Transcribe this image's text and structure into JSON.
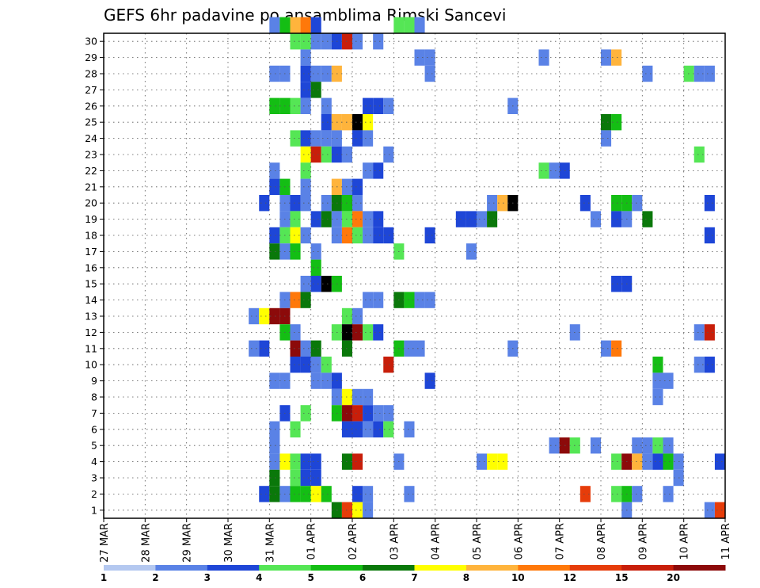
{
  "chart_data": {
    "type": "heatmap",
    "title": "GEFS 6hr padavine po ansamblima Rimski Sancevi",
    "xlabel": "",
    "ylabel": "",
    "y_ticks": [
      "1",
      "2",
      "3",
      "4",
      "5",
      "6",
      "7",
      "8",
      "9",
      "10",
      "11",
      "12",
      "13",
      "14",
      "15",
      "16",
      "17",
      "18",
      "19",
      "20",
      "21",
      "22",
      "23",
      "24",
      "25",
      "26",
      "27",
      "28",
      "29",
      "30"
    ],
    "x_ticks": [
      "27 MAR",
      "28 MAR",
      "29 MAR",
      "30 MAR",
      "31 MAR",
      "01 APR",
      "02 APR",
      "03 APR",
      "04 APR",
      "05 APR",
      "06 APR",
      "07 APR",
      "08 APR",
      "09 APR",
      "10 APR",
      "11 APR"
    ],
    "x_range_steps": [
      0,
      60
    ],
    "x_tick_every_steps": 4,
    "y_range": [
      0,
      30
    ],
    "grid": true,
    "colorbar": {
      "labels": [
        "1",
        "2",
        "3",
        "4",
        "5",
        "6",
        "7",
        "8",
        "10",
        "12",
        "15",
        "20"
      ],
      "colors": [
        "#b4c8f0",
        "#5a82e6",
        "#1e46d7",
        "#55e655",
        "#14be14",
        "#0a780a",
        "#ffff00",
        "#ffb43c",
        "#ff780a",
        "#e63c0a",
        "#c81e0a",
        "#8c0a0a"
      ]
    },
    "cells": [
      [
        16,
        30,
        1
      ],
      [
        17,
        30,
        4
      ],
      [
        18,
        30,
        7
      ],
      [
        19,
        30,
        8
      ],
      [
        20,
        30,
        2
      ],
      [
        28,
        30,
        3
      ],
      [
        29,
        30,
        3
      ],
      [
        30,
        30,
        1
      ],
      [
        18,
        29,
        3
      ],
      [
        19,
        29,
        3
      ],
      [
        20,
        29,
        1
      ],
      [
        21,
        29,
        1
      ],
      [
        22,
        29,
        2
      ],
      [
        23,
        29,
        10
      ],
      [
        24,
        29,
        1
      ],
      [
        26,
        29,
        1
      ],
      [
        19,
        28,
        1
      ],
      [
        30,
        28,
        1
      ],
      [
        31,
        28,
        1
      ],
      [
        42,
        28,
        1
      ],
      [
        48,
        28,
        1
      ],
      [
        49,
        28,
        7
      ],
      [
        16,
        27,
        1
      ],
      [
        17,
        27,
        1
      ],
      [
        19,
        27,
        2
      ],
      [
        20,
        27,
        1
      ],
      [
        21,
        27,
        1
      ],
      [
        22,
        27,
        7
      ],
      [
        31,
        27,
        1
      ],
      [
        52,
        27,
        1
      ],
      [
        56,
        27,
        3
      ],
      [
        57,
        27,
        1
      ],
      [
        58,
        27,
        1
      ],
      [
        19,
        26,
        2
      ],
      [
        20,
        26,
        5
      ],
      [
        16,
        25,
        4
      ],
      [
        17,
        25,
        4
      ],
      [
        18,
        25,
        3
      ],
      [
        19,
        25,
        1
      ],
      [
        21,
        25,
        1
      ],
      [
        25,
        25,
        2
      ],
      [
        26,
        25,
        2
      ],
      [
        27,
        25,
        1
      ],
      [
        39,
        25,
        1
      ],
      [
        21,
        24,
        2
      ],
      [
        22,
        24,
        7
      ],
      [
        23,
        24,
        7
      ],
      [
        24,
        24,
        13
      ],
      [
        25,
        24,
        6
      ],
      [
        48,
        24,
        5
      ],
      [
        49,
        24,
        4
      ],
      [
        18,
        23,
        3
      ],
      [
        19,
        23,
        2
      ],
      [
        20,
        23,
        1
      ],
      [
        21,
        23,
        1
      ],
      [
        22,
        23,
        1
      ],
      [
        24,
        23,
        2
      ],
      [
        25,
        23,
        1
      ],
      [
        48,
        23,
        1
      ],
      [
        19,
        22,
        6
      ],
      [
        20,
        22,
        10
      ],
      [
        21,
        22,
        3
      ],
      [
        22,
        22,
        2
      ],
      [
        23,
        22,
        1
      ],
      [
        27,
        22,
        1
      ],
      [
        57,
        22,
        3
      ],
      [
        16,
        21,
        1
      ],
      [
        19,
        21,
        3
      ],
      [
        25,
        21,
        1
      ],
      [
        26,
        21,
        2
      ],
      [
        42,
        21,
        3
      ],
      [
        43,
        21,
        1
      ],
      [
        44,
        21,
        2
      ],
      [
        16,
        20,
        2
      ],
      [
        17,
        20,
        4
      ],
      [
        19,
        20,
        1
      ],
      [
        22,
        20,
        7
      ],
      [
        23,
        20,
        1
      ],
      [
        24,
        20,
        2
      ],
      [
        15,
        19,
        2
      ],
      [
        17,
        19,
        1
      ],
      [
        18,
        19,
        2
      ],
      [
        19,
        19,
        1
      ],
      [
        21,
        19,
        1
      ],
      [
        22,
        19,
        5
      ],
      [
        23,
        19,
        4
      ],
      [
        24,
        19,
        1
      ],
      [
        37,
        19,
        1
      ],
      [
        38,
        19,
        7
      ],
      [
        39,
        19,
        13
      ],
      [
        46,
        19,
        2
      ],
      [
        49,
        19,
        4
      ],
      [
        50,
        19,
        4
      ],
      [
        51,
        19,
        1
      ],
      [
        58,
        19,
        2
      ],
      [
        17,
        18,
        1
      ],
      [
        18,
        18,
        3
      ],
      [
        20,
        18,
        2
      ],
      [
        21,
        18,
        5
      ],
      [
        22,
        18,
        1
      ],
      [
        23,
        18,
        3
      ],
      [
        24,
        18,
        8
      ],
      [
        25,
        18,
        1
      ],
      [
        26,
        18,
        2
      ],
      [
        34,
        18,
        2
      ],
      [
        35,
        18,
        2
      ],
      [
        36,
        18,
        1
      ],
      [
        37,
        18,
        5
      ],
      [
        47,
        18,
        1
      ],
      [
        49,
        18,
        2
      ],
      [
        50,
        18,
        1
      ],
      [
        52,
        18,
        5
      ],
      [
        16,
        17,
        2
      ],
      [
        17,
        17,
        3
      ],
      [
        18,
        17,
        6
      ],
      [
        19,
        17,
        1
      ],
      [
        22,
        17,
        1
      ],
      [
        23,
        17,
        8
      ],
      [
        24,
        17,
        3
      ],
      [
        25,
        17,
        1
      ],
      [
        26,
        17,
        2
      ],
      [
        27,
        17,
        2
      ],
      [
        31,
        17,
        2
      ],
      [
        58,
        17,
        2
      ],
      [
        16,
        16,
        5
      ],
      [
        17,
        16,
        1
      ],
      [
        18,
        16,
        4
      ],
      [
        20,
        16,
        1
      ],
      [
        28,
        16,
        3
      ],
      [
        35,
        16,
        1
      ],
      [
        20,
        15,
        4
      ],
      [
        19,
        14,
        1
      ],
      [
        20,
        14,
        2
      ],
      [
        21,
        14,
        13
      ],
      [
        22,
        14,
        4
      ],
      [
        49,
        14,
        2
      ],
      [
        50,
        14,
        2
      ],
      [
        17,
        13,
        1
      ],
      [
        18,
        13,
        8
      ],
      [
        19,
        13,
        5
      ],
      [
        25,
        13,
        1
      ],
      [
        26,
        13,
        1
      ],
      [
        28,
        13,
        5
      ],
      [
        29,
        13,
        4
      ],
      [
        30,
        13,
        1
      ],
      [
        31,
        13,
        1
      ],
      [
        14,
        12,
        1
      ],
      [
        15,
        12,
        6
      ],
      [
        16,
        12,
        11
      ],
      [
        17,
        12,
        11
      ],
      [
        23,
        12,
        3
      ],
      [
        24,
        12,
        1
      ],
      [
        17,
        11,
        4
      ],
      [
        18,
        11,
        1
      ],
      [
        22,
        11,
        3
      ],
      [
        23,
        11,
        13
      ],
      [
        24,
        11,
        11
      ],
      [
        25,
        11,
        3
      ],
      [
        26,
        11,
        2
      ],
      [
        45,
        11,
        1
      ],
      [
        57,
        11,
        1
      ],
      [
        58,
        11,
        10
      ],
      [
        14,
        10,
        1
      ],
      [
        15,
        10,
        2
      ],
      [
        18,
        10,
        11
      ],
      [
        19,
        10,
        1
      ],
      [
        20,
        10,
        5
      ],
      [
        23,
        10,
        5
      ],
      [
        28,
        10,
        4
      ],
      [
        29,
        10,
        1
      ],
      [
        30,
        10,
        1
      ],
      [
        39,
        10,
        1
      ],
      [
        48,
        10,
        1
      ],
      [
        49,
        10,
        8
      ],
      [
        18,
        9,
        2
      ],
      [
        19,
        9,
        2
      ],
      [
        20,
        9,
        1
      ],
      [
        21,
        9,
        3
      ],
      [
        27,
        9,
        10
      ],
      [
        53,
        9,
        4
      ],
      [
        57,
        9,
        1
      ],
      [
        58,
        9,
        2
      ],
      [
        16,
        8,
        1
      ],
      [
        17,
        8,
        1
      ],
      [
        20,
        8,
        1
      ],
      [
        21,
        8,
        1
      ],
      [
        22,
        8,
        2
      ],
      [
        31,
        8,
        2
      ],
      [
        53,
        8,
        1
      ],
      [
        54,
        8,
        1
      ],
      [
        22,
        7,
        1
      ],
      [
        23,
        7,
        6
      ],
      [
        24,
        7,
        1
      ],
      [
        25,
        7,
        1
      ],
      [
        53,
        7,
        1
      ],
      [
        17,
        6,
        2
      ],
      [
        19,
        6,
        3
      ],
      [
        22,
        6,
        4
      ],
      [
        23,
        6,
        11
      ],
      [
        24,
        6,
        10
      ],
      [
        25,
        6,
        2
      ],
      [
        26,
        6,
        1
      ],
      [
        27,
        6,
        1
      ],
      [
        16,
        5,
        1
      ],
      [
        18,
        5,
        3
      ],
      [
        23,
        5,
        2
      ],
      [
        24,
        5,
        2
      ],
      [
        25,
        5,
        1
      ],
      [
        26,
        5,
        2
      ],
      [
        27,
        5,
        3
      ],
      [
        29,
        5,
        1
      ],
      [
        16,
        4,
        1
      ],
      [
        43,
        4,
        1
      ],
      [
        44,
        4,
        11
      ],
      [
        45,
        4,
        3
      ],
      [
        47,
        4,
        1
      ],
      [
        51,
        4,
        1
      ],
      [
        52,
        4,
        1
      ],
      [
        53,
        4,
        3
      ],
      [
        54,
        4,
        1
      ],
      [
        16,
        3,
        1
      ],
      [
        17,
        3,
        6
      ],
      [
        18,
        3,
        3
      ],
      [
        19,
        3,
        2
      ],
      [
        20,
        3,
        2
      ],
      [
        23,
        3,
        5
      ],
      [
        24,
        3,
        10
      ],
      [
        28,
        3,
        1
      ],
      [
        36,
        3,
        1
      ],
      [
        37,
        3,
        6
      ],
      [
        38,
        3,
        6
      ],
      [
        49,
        3,
        3
      ],
      [
        50,
        3,
        11
      ],
      [
        51,
        3,
        7
      ],
      [
        52,
        3,
        1
      ],
      [
        53,
        3,
        2
      ],
      [
        54,
        3,
        4
      ],
      [
        55,
        3,
        1
      ],
      [
        59,
        3,
        2
      ],
      [
        16,
        2,
        5
      ],
      [
        18,
        2,
        3
      ],
      [
        19,
        2,
        2
      ],
      [
        20,
        2,
        2
      ],
      [
        55,
        2,
        1
      ],
      [
        15,
        1,
        2
      ],
      [
        16,
        1,
        5
      ],
      [
        17,
        1,
        1
      ],
      [
        18,
        1,
        4
      ],
      [
        19,
        1,
        4
      ],
      [
        20,
        1,
        6
      ],
      [
        21,
        1,
        4
      ],
      [
        24,
        1,
        2
      ],
      [
        25,
        1,
        1
      ],
      [
        29,
        1,
        1
      ],
      [
        46,
        1,
        9
      ],
      [
        49,
        1,
        3
      ],
      [
        50,
        1,
        4
      ],
      [
        51,
        1,
        1
      ],
      [
        54,
        1,
        1
      ],
      [
        22,
        0,
        5
      ],
      [
        23,
        0,
        9
      ],
      [
        24,
        0,
        6
      ],
      [
        25,
        0,
        1
      ],
      [
        50,
        0,
        1
      ],
      [
        58,
        0,
        1
      ],
      [
        59,
        0,
        9
      ]
    ]
  }
}
